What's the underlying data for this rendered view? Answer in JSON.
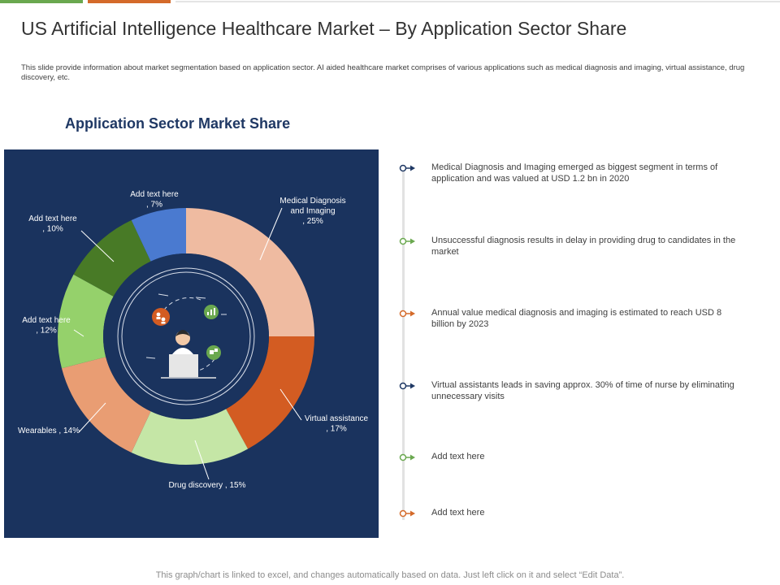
{
  "page": {
    "title": "US Artificial Intelligence Healthcare Market – By Application Sector Share",
    "description": "This slide provide information about market segmentation based on application sector. AI aided healthcare market comprises of various applications such as medical diagnosis and imaging, virtual assistance, drug discovery, etc.",
    "footer": "This graph/chart is linked to excel, and changes automatically based on data. Just left click on it and select “Edit Data”."
  },
  "colors": {
    "accent_green": "#6aa84f",
    "accent_orange": "#d46a2a",
    "panel_background": "#1a335e",
    "timeline_navy": "#1f3864",
    "timeline_green": "#6aa84f",
    "timeline_orange": "#d46a2a"
  },
  "center_icons": [
    "person-at-desk-icon",
    "team-icon",
    "chart-icon",
    "network-icon"
  ],
  "chart_data": {
    "type": "pie",
    "subtype": "donut",
    "title": "Application Sector Market Share",
    "value_unit": "%",
    "series": [
      {
        "name": "Medical Diagnosis and Imaging",
        "label": "Medical Diagnosis and Imaging , 25%",
        "value": 25,
        "color": "#efbba1"
      },
      {
        "name": "Virtual assistance",
        "label": "Virtual assistance , 17%",
        "value": 17,
        "color": "#d35c22"
      },
      {
        "name": "Drug discovery",
        "label": "Drug discovery , 15%",
        "value": 15,
        "color": "#c5e6a6"
      },
      {
        "name": "Wearables",
        "label": "Wearables , 14%",
        "value": 14,
        "color": "#e99d73"
      },
      {
        "name": "Add text here",
        "label": "Add text here , 12%",
        "value": 12,
        "color": "#95d16b"
      },
      {
        "name": "Add text here",
        "label": "Add text here , 10%",
        "value": 10,
        "color": "#487a26"
      },
      {
        "name": "Add text here",
        "label": "Add text here , 7%",
        "value": 7,
        "color": "#4a7ad0"
      }
    ]
  },
  "timeline": [
    {
      "text": "Medical Diagnosis and Imaging emerged as biggest segment in terms of application and was valued at USD 1.2 bn in 2020",
      "color": "#1f3864"
    },
    {
      "text": "Unsuccessful diagnosis results in delay in providing drug to candidates in the market",
      "color": "#6aa84f"
    },
    {
      "text": "Annual value medical diagnosis and imaging is estimated to reach USD 8 billion by 2023",
      "color": "#d46a2a"
    },
    {
      "text": "Virtual assistants leads in saving approx. 30% of time of nurse by eliminating unnecessary visits",
      "color": "#1f3864"
    },
    {
      "text": "Add text here",
      "color": "#6aa84f"
    },
    {
      "text": "Add text here",
      "color": "#d46a2a"
    }
  ]
}
